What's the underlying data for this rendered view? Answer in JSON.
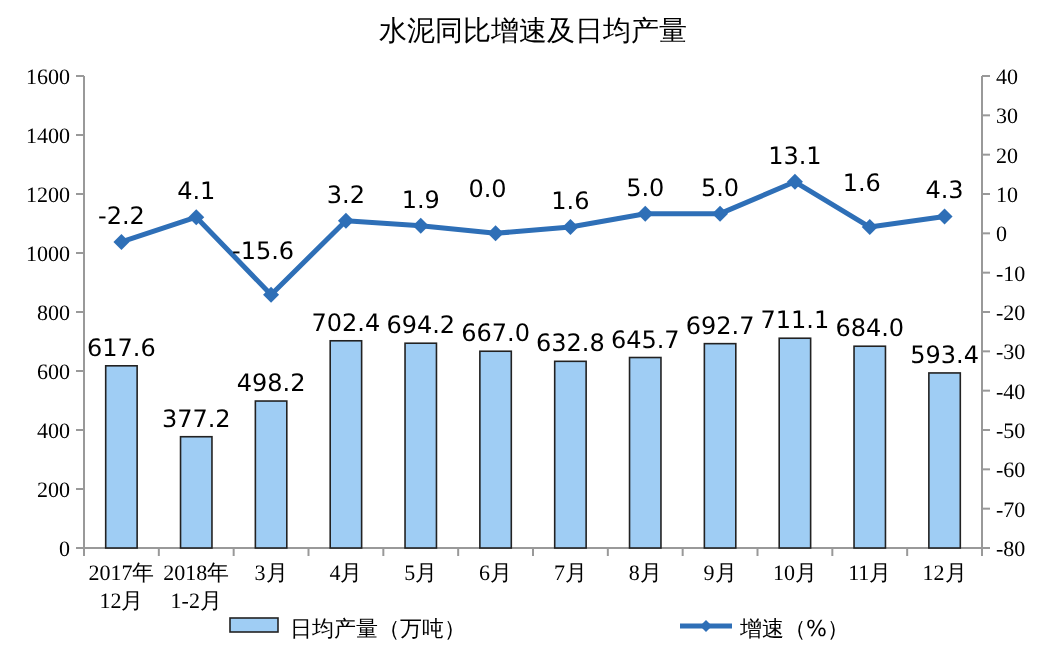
{
  "chart_data": {
    "type": "bar",
    "title": "水泥同比增速及日均产量",
    "categories": [
      "2017年\n12月",
      "2018年\n1-2月",
      "3月",
      "4月",
      "5月",
      "6月",
      "7月",
      "8月",
      "9月",
      "10月",
      "11月",
      "12月"
    ],
    "series": [
      {
        "name": "日均产量（万吨）",
        "color": "#9fcdf4",
        "values": [
          617.6,
          377.2,
          498.2,
          702.4,
          694.2,
          667,
          632.8,
          645.7,
          692.7,
          711.1,
          684,
          593.4
        ],
        "value_labels": [
          "617.6",
          "377.2",
          "498.2",
          "702.4",
          "694.2",
          "667.0",
          "632.8",
          "645.7",
          "692.7",
          "711.1",
          "684.0",
          "593.4"
        ]
      },
      {
        "name": "增速（%）",
        "type": "line",
        "axis": "y2",
        "color": "#2e6fb7",
        "marker": "diamond",
        "values": [
          -2.2,
          4.1,
          -15.6,
          3.2,
          1.9,
          0,
          1.6,
          5,
          5,
          13.1,
          1.6,
          4.3
        ],
        "value_labels": [
          "-2.2",
          "4.1",
          "-15.6",
          "3.2",
          "1.9",
          "0.0",
          "1.6",
          "5.0",
          "5.0",
          "13.1",
          "1.6",
          "4.3"
        ]
      }
    ],
    "ylim": [
      0,
      1600
    ],
    "yticks": [
      0,
      200,
      400,
      600,
      800,
      1000,
      1200,
      1400,
      1600
    ],
    "y2lim": [
      -80,
      40
    ],
    "y2ticks": [
      -80,
      -70,
      -60,
      -50,
      -40,
      -30,
      -20,
      -10,
      0,
      10,
      20,
      30,
      40
    ],
    "grid": false,
    "legend": "bottom"
  }
}
